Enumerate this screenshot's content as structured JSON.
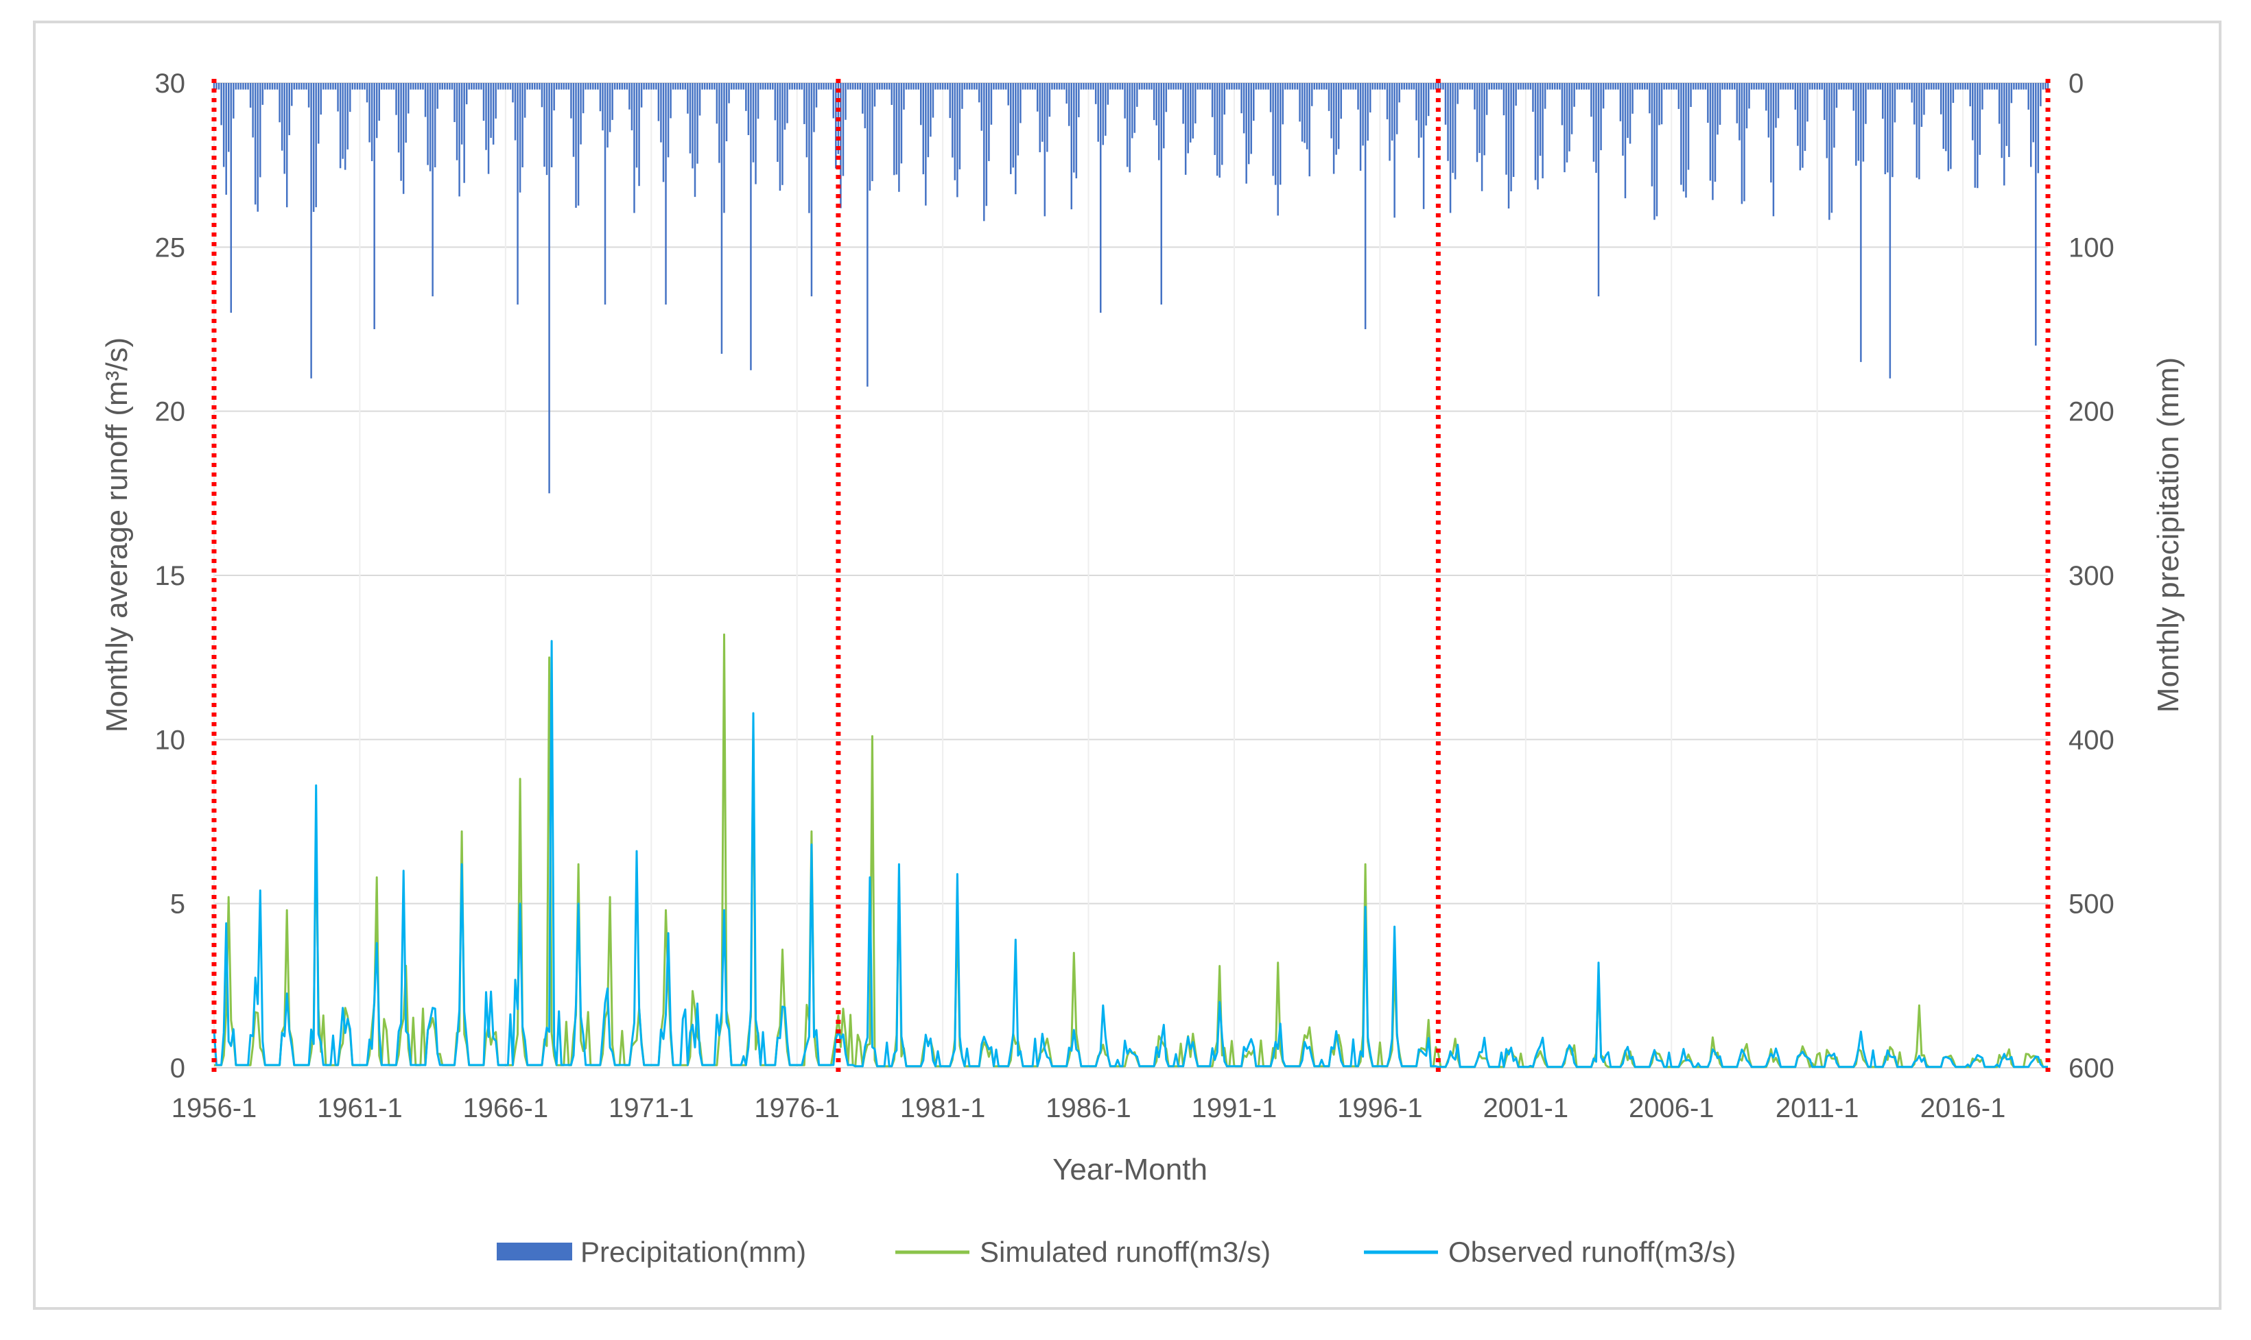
{
  "chart_data": {
    "type": "bar+line",
    "title": "",
    "xlabel": "Year-Month",
    "ylabel_left": "Monthly average runoff (m³/s)",
    "ylabel_right": "Monthly precipitation (mm)",
    "x_tick_labels": [
      "1956-1",
      "1961-1",
      "1966-1",
      "1971-1",
      "1976-1",
      "1981-1",
      "1986-1",
      "1991-1",
      "1996-1",
      "2001-1",
      "2006-1",
      "2011-1",
      "2016-1"
    ],
    "x_range": [
      "1956-1",
      "2018-12"
    ],
    "ylim_left": [
      0,
      30
    ],
    "y_ticks_left": [
      0,
      5,
      10,
      15,
      20,
      25,
      30
    ],
    "ylim_right": [
      600,
      0
    ],
    "y_ticks_right": [
      0,
      100,
      200,
      300,
      400,
      500,
      600
    ],
    "right_axis_inverted": true,
    "grid": "horizontal major gridlines",
    "legend_position": "bottom",
    "period_dividers": [
      "1956-1",
      "1977-6",
      "1998-1",
      "2018-12"
    ],
    "colors": {
      "precipitation": "#4472c4",
      "simulated": "#8bc34a",
      "observed": "#00b0f0",
      "divider": "#ff0000",
      "grid": "#d9d9d9",
      "text": "#595959"
    },
    "series": [
      {
        "name": "Precipitation(mm)",
        "type": "bar",
        "axis": "right",
        "note_peaks": [
          {
            "x": "1956-8",
            "y": 140
          },
          {
            "x": "1959-5",
            "y": 180
          },
          {
            "x": "1961-7",
            "y": 150
          },
          {
            "x": "1963-7",
            "y": 130
          },
          {
            "x": "1966-6",
            "y": 135
          },
          {
            "x": "1967-7",
            "y": 250
          },
          {
            "x": "1969-6",
            "y": 135
          },
          {
            "x": "1971-7",
            "y": 135
          },
          {
            "x": "1973-6",
            "y": 165
          },
          {
            "x": "1974-6",
            "y": 175
          },
          {
            "x": "1976-7",
            "y": 130
          },
          {
            "x": "1978-6",
            "y": 185
          },
          {
            "x": "1986-6",
            "y": 140
          },
          {
            "x": "1988-7",
            "y": 135
          },
          {
            "x": "1995-7",
            "y": 150
          },
          {
            "x": "2003-7",
            "y": 130
          },
          {
            "x": "2012-7",
            "y": 170
          },
          {
            "x": "2013-7",
            "y": 180
          },
          {
            "x": "2018-7",
            "y": 160
          }
        ]
      },
      {
        "name": "Simulated runoff(m3/s)",
        "type": "line",
        "axis": "left",
        "peaks": [
          {
            "x": "1956-7",
            "y": 5.2
          },
          {
            "x": "1958-7",
            "y": 4.8
          },
          {
            "x": "1959-7",
            "y": 7.2
          },
          {
            "x": "1961-8",
            "y": 5.8
          },
          {
            "x": "1964-7",
            "y": 7.2
          },
          {
            "x": "1966-7",
            "y": 8.8
          },
          {
            "x": "1967-7",
            "y": 12.5
          },
          {
            "x": "1968-7",
            "y": 6.2
          },
          {
            "x": "1969-8",
            "y": 5.2
          },
          {
            "x": "1971-7",
            "y": 4.8
          },
          {
            "x": "1973-7",
            "y": 13.2
          },
          {
            "x": "1974-7",
            "y": 10.2
          },
          {
            "x": "1975-7",
            "y": 3.6
          },
          {
            "x": "1976-7",
            "y": 7.2
          },
          {
            "x": "1978-8",
            "y": 10.1
          },
          {
            "x": "1979-7",
            "y": 5.8
          },
          {
            "x": "1981-7",
            "y": 4.8
          },
          {
            "x": "1985-7",
            "y": 3.5
          },
          {
            "x": "1990-7",
            "y": 3.1
          },
          {
            "x": "1992-7",
            "y": 3.2
          },
          {
            "x": "1995-7",
            "y": 6.2
          },
          {
            "x": "1996-7",
            "y": 3.0
          },
          {
            "x": "2003-7",
            "y": 2.8
          },
          {
            "x": "2014-7",
            "y": 1.9
          }
        ]
      },
      {
        "name": "Observed runoff(m3/s)",
        "type": "line",
        "axis": "left",
        "peaks": [
          {
            "x": "1956-6",
            "y": 4.4
          },
          {
            "x": "1957-8",
            "y": 5.4
          },
          {
            "x": "1959-7",
            "y": 8.6
          },
          {
            "x": "1961-8",
            "y": 3.8
          },
          {
            "x": "1962-7",
            "y": 6.0
          },
          {
            "x": "1964-7",
            "y": 6.2
          },
          {
            "x": "1966-7",
            "y": 5.0
          },
          {
            "x": "1967-8",
            "y": 13.0
          },
          {
            "x": "1968-7",
            "y": 5.0
          },
          {
            "x": "1970-7",
            "y": 6.6
          },
          {
            "x": "1971-8",
            "y": 4.1
          },
          {
            "x": "1973-7",
            "y": 4.8
          },
          {
            "x": "1974-7",
            "y": 10.8
          },
          {
            "x": "1976-7",
            "y": 6.8
          },
          {
            "x": "1978-7",
            "y": 5.8
          },
          {
            "x": "1979-7",
            "y": 6.2
          },
          {
            "x": "1981-7",
            "y": 5.9
          },
          {
            "x": "1983-7",
            "y": 3.9
          },
          {
            "x": "1986-7",
            "y": 1.9
          },
          {
            "x": "1990-7",
            "y": 2.0
          },
          {
            "x": "1995-7",
            "y": 4.9
          },
          {
            "x": "1996-7",
            "y": 4.3
          },
          {
            "x": "2003-7",
            "y": 3.2
          },
          {
            "x": "2012-7",
            "y": 1.1
          }
        ]
      }
    ]
  }
}
